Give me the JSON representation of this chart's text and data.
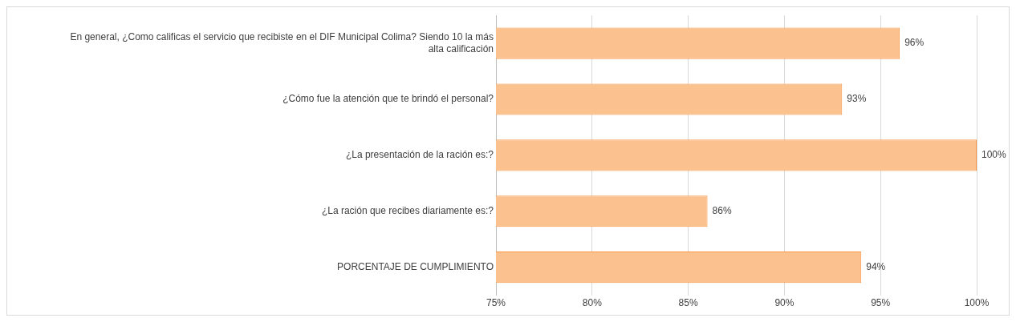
{
  "chart_data": {
    "type": "bar",
    "orientation": "horizontal",
    "categories": [
      "En general, ¿Como calificas el servicio que recibiste en el DIF Municipal Colima? Siendo 10 la más alta calificación",
      "¿Cómo fue la atención que te brindó el personal?",
      "¿La presentación de la ración es:?",
      "¿La ración que recibes diariamente es:?",
      "PORCENTAJE DE CUMPLIMIENTO"
    ],
    "values": [
      96,
      93,
      100,
      86,
      94
    ],
    "value_labels": [
      "96%",
      "93%",
      "100%",
      "86%",
      "94%"
    ],
    "color": "#fbc290",
    "xlim": [
      75,
      100
    ],
    "xticks": [
      {
        "value": 75,
        "label": "75%"
      },
      {
        "value": 80,
        "label": "80%"
      },
      {
        "value": 85,
        "label": "85%"
      },
      {
        "value": 90,
        "label": "90%"
      },
      {
        "value": 95,
        "label": "95%"
      },
      {
        "value": 100,
        "label": "100%"
      }
    ],
    "grid": "x",
    "legend": false
  }
}
